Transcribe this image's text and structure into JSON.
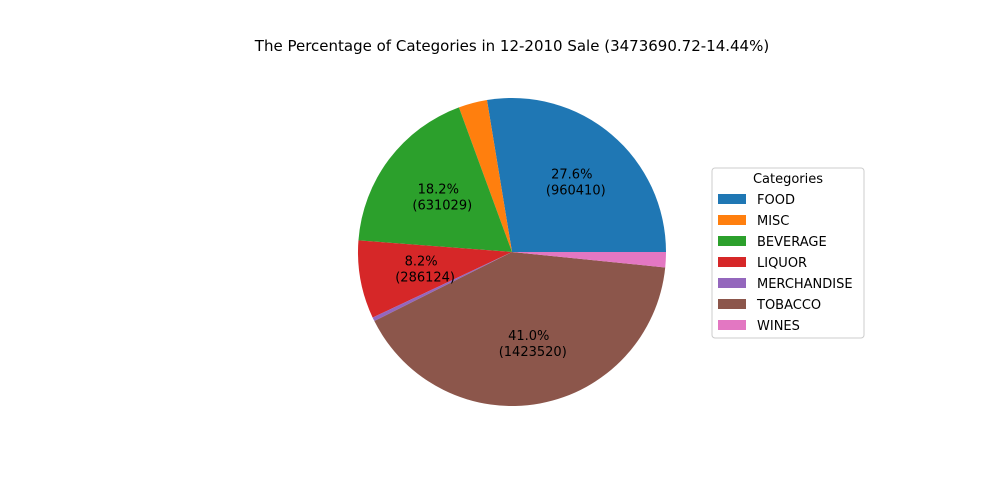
{
  "chart_data": {
    "type": "pie",
    "title": "The Percentage of Categories in 12-2010 Sale (3473690.72-14.44%)",
    "legend": {
      "title": "Categories",
      "placement": "right"
    },
    "slices": [
      {
        "label": "FOOD",
        "percent": 27.6,
        "value": 960410,
        "pct_text": "27.6%",
        "val_text": "(960410)",
        "color": "#1f77b4",
        "show_label": true
      },
      {
        "label": "MISC",
        "percent": 3.0,
        "value": null,
        "pct_text": "",
        "val_text": "",
        "color": "#ff7f0e",
        "show_label": false
      },
      {
        "label": "BEVERAGE",
        "percent": 18.2,
        "value": 631029,
        "pct_text": "18.2%",
        "val_text": "(631029)",
        "color": "#2ca02c",
        "show_label": true
      },
      {
        "label": "LIQUOR",
        "percent": 8.2,
        "value": 286124,
        "pct_text": "8.2%",
        "val_text": "(286124)",
        "color": "#d62728",
        "show_label": true
      },
      {
        "label": "MERCHANDISE",
        "percent": 0.4,
        "value": null,
        "pct_text": "",
        "val_text": "",
        "color": "#9467bd",
        "show_label": false
      },
      {
        "label": "TOBACCO",
        "percent": 41.0,
        "value": 1423520,
        "pct_text": "41.0%",
        "val_text": "(1423520)",
        "color": "#8c564b",
        "show_label": true
      },
      {
        "label": "WINES",
        "percent": 1.6,
        "value": null,
        "pct_text": "",
        "val_text": "",
        "color": "#e377c2",
        "show_label": false
      }
    ]
  }
}
